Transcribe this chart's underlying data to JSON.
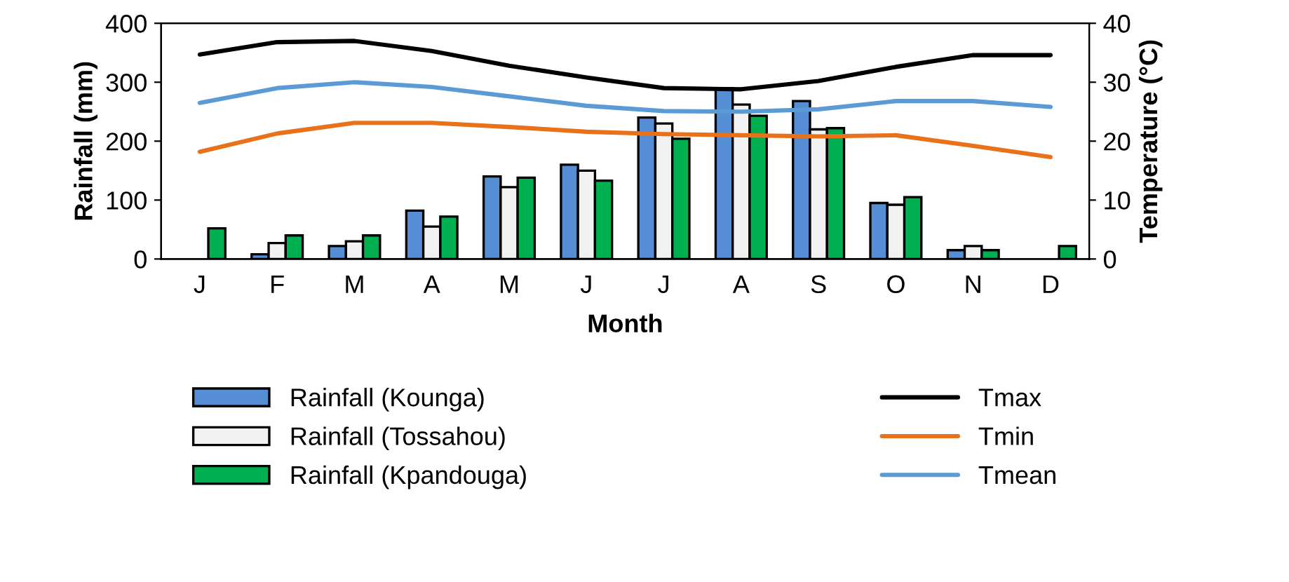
{
  "chart_data": {
    "type": "bar",
    "xlabel": "Month",
    "ylabel": "Rainfall (mm)",
    "y2label": "Temperature (°C)",
    "categories": [
      "J",
      "F",
      "M",
      "A",
      "M",
      "J",
      "J",
      "A",
      "S",
      "O",
      "N",
      "D"
    ],
    "ylim": [
      0,
      400
    ],
    "yticks": [
      0,
      100,
      200,
      300,
      400
    ],
    "y2lim": [
      0,
      40
    ],
    "y2ticks": [
      0,
      10,
      20,
      30,
      40
    ],
    "legend": "bottom",
    "grid": false,
    "series": [
      {
        "name": "Rainfall (Kounga)",
        "color": "#558ed5",
        "values": [
          null,
          8,
          22,
          82,
          140,
          160,
          240,
          290,
          268,
          95,
          15,
          null
        ]
      },
      {
        "name": "Rainfall (Tossahou)",
        "color": "#f2f2f2",
        "values": [
          null,
          27,
          30,
          55,
          122,
          150,
          230,
          262,
          220,
          92,
          22,
          null
        ]
      },
      {
        "name": "Rainfall (Kpandouga)",
        "color": "#00b050",
        "values": [
          52,
          40,
          40,
          72,
          138,
          133,
          204,
          243,
          222,
          105,
          15,
          22
        ]
      },
      {
        "name": "Tmax",
        "type": "line",
        "axis": "y2",
        "color": "#000000",
        "values": [
          34.7,
          36.8,
          37,
          35.3,
          32.8,
          30.8,
          29,
          28.8,
          30.2,
          32.6,
          34.6,
          34.6
        ]
      },
      {
        "name": "Tmin",
        "type": "line",
        "axis": "y2",
        "color": "#e8711a",
        "values": [
          18.2,
          21.3,
          23.1,
          23.1,
          22.4,
          21.6,
          21.2,
          21,
          20.8,
          21,
          19.2,
          17.3
        ]
      },
      {
        "name": "Tmean",
        "type": "line",
        "axis": "y2",
        "color": "#5b9bd5",
        "values": [
          26.5,
          29,
          30,
          29.2,
          27.6,
          26,
          25.1,
          25,
          25.4,
          26.8,
          26.8,
          25.8
        ]
      }
    ]
  }
}
